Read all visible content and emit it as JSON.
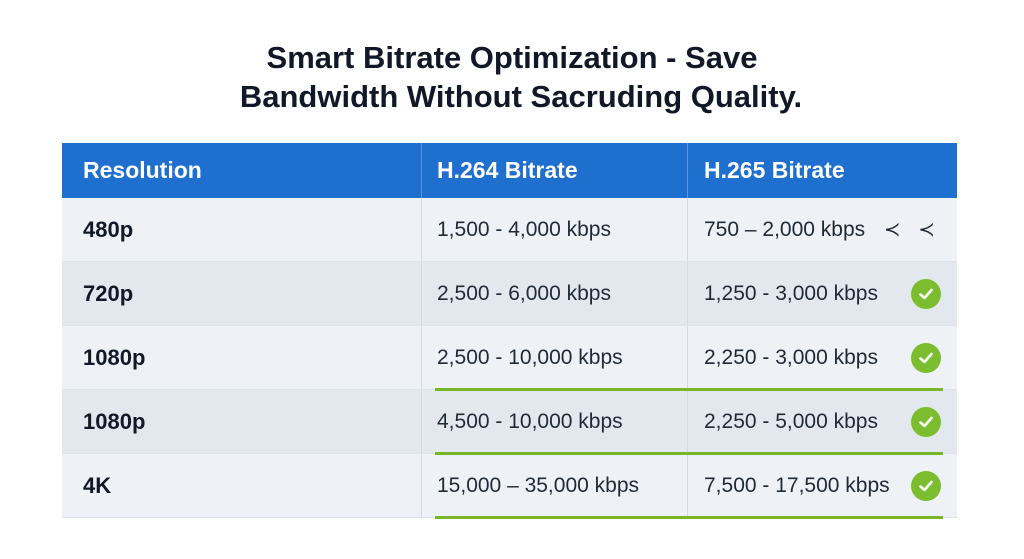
{
  "title": {
    "line1": "Smart Bitrate Optimization - Save",
    "line2": "Bandwidth Without Sacruding Quality."
  },
  "table": {
    "headers": [
      "Resolution",
      "H.264 Bitrate",
      "H.265 Bitrate"
    ],
    "rows": [
      {
        "resolution": "480p",
        "h264": "1,500 - 4,000 kbps",
        "h265": "750 – 2,000 kbps",
        "marker": "≺ ≺",
        "status": "arrow-marks"
      },
      {
        "resolution": "720p",
        "h264": "2,500 - 6,000 kbps",
        "h265": "1,250 - 3,000 kbps",
        "status": "check"
      },
      {
        "resolution": "1080p",
        "h264": "2,500 - 10,000 kbps",
        "h265": "2,250 - 3,000 kbps",
        "status": "check"
      },
      {
        "resolution": "1080p",
        "h264": "4,500 - 10,000 kbps",
        "h265": "2,250 - 5,000 kbps",
        "status": "check"
      },
      {
        "resolution": "4K",
        "h264": "15,000 – 35,000 kbps",
        "h265": "7,500 - 17,500 kbps",
        "status": "check"
      }
    ]
  },
  "colors": {
    "header_bg": "#1f6fcf",
    "check_green": "#7cbd2f",
    "highlight_line": "#76b82a"
  }
}
